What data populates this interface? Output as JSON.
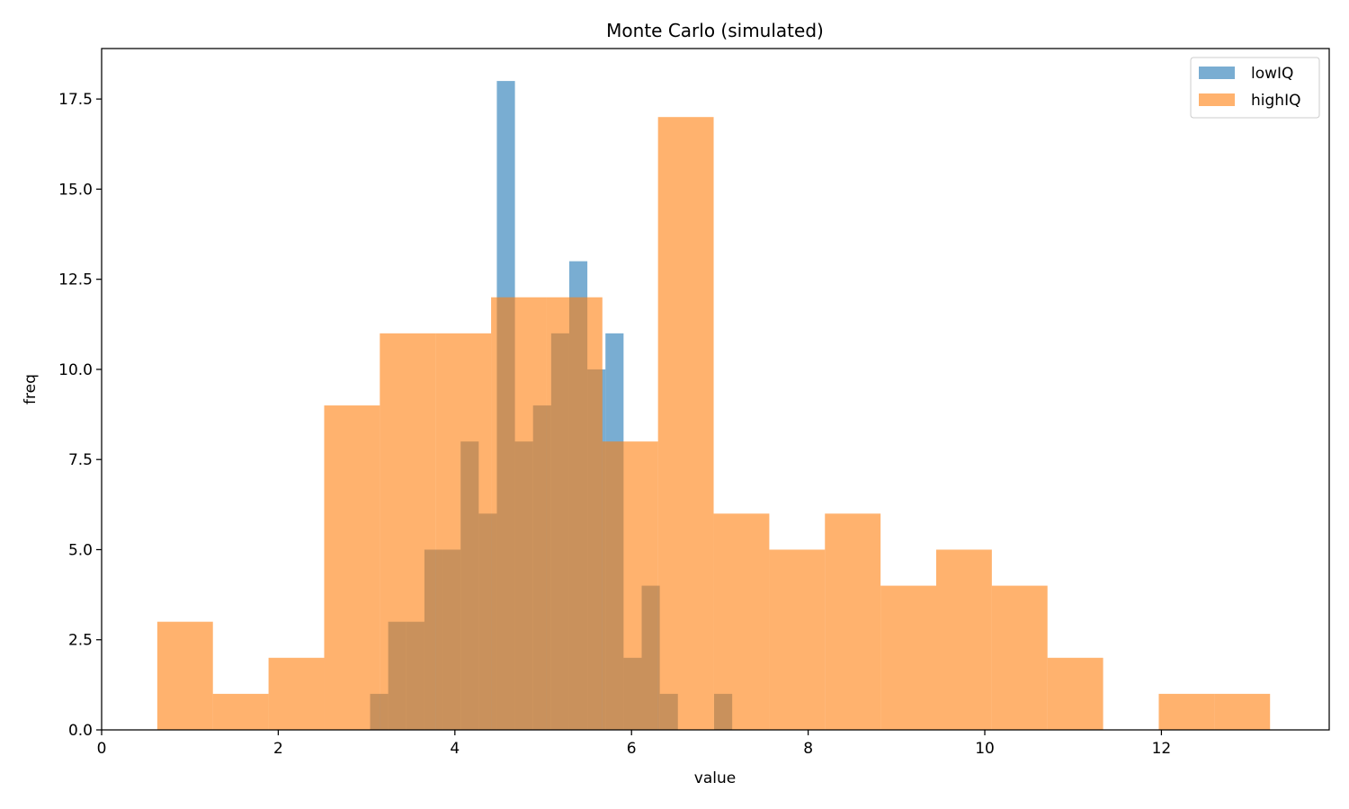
{
  "chart_data": {
    "type": "histogram",
    "title": "Monte Carlo (simulated)",
    "xlabel": "value",
    "ylabel": "freq",
    "xlim": [
      0,
      13.9
    ],
    "ylim": [
      0,
      18.9
    ],
    "xticks": [
      0,
      2,
      4,
      6,
      8,
      10,
      12
    ],
    "yticks": [
      0.0,
      2.5,
      5.0,
      7.5,
      10.0,
      12.5,
      15.0,
      17.5
    ],
    "ytick_labels": [
      "0.0",
      "2.5",
      "5.0",
      "7.5",
      "10.0",
      "12.5",
      "15.0",
      "17.5"
    ],
    "grid": false,
    "legend_position": "top-right",
    "bar_opacity": 0.6,
    "series": [
      {
        "name": "lowIQ",
        "color": "#1f77b4",
        "bin_edges": [
          3.04,
          3.245,
          3.45,
          3.655,
          3.86,
          4.065,
          4.27,
          4.475,
          4.68,
          4.885,
          5.09,
          5.295,
          5.5,
          5.705,
          5.91,
          6.115,
          6.32,
          6.525,
          6.73,
          6.935,
          7.14
        ],
        "counts": [
          1,
          3,
          3,
          5,
          5,
          8,
          6,
          18,
          8,
          9,
          11,
          13,
          10,
          11,
          2,
          4,
          1,
          0,
          0,
          1
        ]
      },
      {
        "name": "highIQ",
        "color": "#ff7f0e",
        "bin_edges": [
          0.63,
          1.26,
          1.89,
          2.52,
          3.15,
          3.78,
          4.41,
          5.04,
          5.67,
          6.3,
          6.93,
          7.56,
          8.19,
          8.82,
          9.45,
          10.08,
          10.71,
          11.34,
          11.97,
          12.6,
          13.23
        ],
        "counts": [
          3,
          1,
          2,
          9,
          11,
          11,
          12,
          12,
          8,
          17,
          6,
          5,
          6,
          4,
          5,
          4,
          2,
          0,
          1,
          1
        ]
      }
    ]
  }
}
